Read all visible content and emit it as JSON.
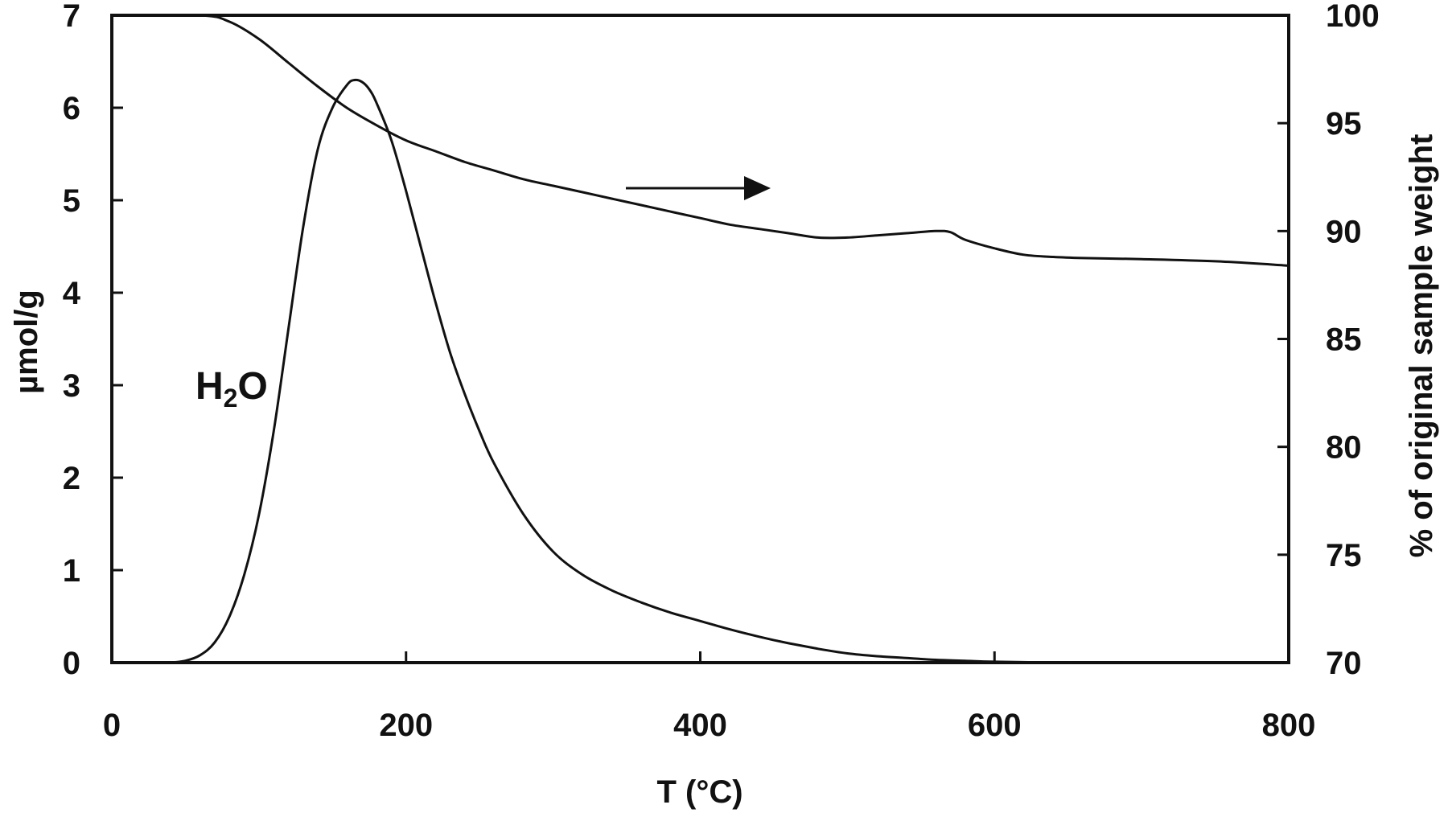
{
  "chart_data": {
    "type": "line",
    "title": "",
    "xlabel": "T (°C)",
    "ylabel": "µmol/g",
    "y2label": "% of original sample weight",
    "xlim": [
      0,
      800
    ],
    "ylim": [
      0,
      7
    ],
    "y2lim": [
      70,
      100
    ],
    "xticks": [
      "0",
      "200",
      "400",
      "600",
      "800"
    ],
    "yticks": [
      "0",
      "1",
      "2",
      "3",
      "4",
      "5",
      "6",
      "7"
    ],
    "y2ticks": [
      "70",
      "75",
      "80",
      "85",
      "90",
      "95",
      "100"
    ],
    "grid": false,
    "legend": "none",
    "annotations": {
      "h2o_main": "H",
      "h2o_sub": "2",
      "h2o_tail": "O"
    },
    "series": [
      {
        "axis": "left",
        "x": [
          40,
          50,
          60,
          70,
          80,
          90,
          100,
          110,
          120,
          130,
          140,
          150,
          160,
          165,
          170,
          175,
          180,
          190,
          200,
          210,
          220,
          230,
          240,
          250,
          260,
          280,
          300,
          320,
          340,
          360,
          380,
          400,
          420,
          440,
          460,
          480,
          500,
          520,
          540,
          560,
          580,
          600,
          650,
          700,
          750,
          800
        ],
        "y": [
          0.0,
          0.02,
          0.08,
          0.22,
          0.5,
          0.95,
          1.6,
          2.5,
          3.6,
          4.7,
          5.55,
          6.0,
          6.25,
          6.3,
          6.28,
          6.2,
          6.05,
          5.65,
          5.1,
          4.5,
          3.9,
          3.35,
          2.9,
          2.5,
          2.15,
          1.6,
          1.2,
          0.95,
          0.78,
          0.65,
          0.54,
          0.45,
          0.36,
          0.28,
          0.21,
          0.15,
          0.1,
          0.07,
          0.05,
          0.03,
          0.02,
          0.01,
          0.0,
          0.0,
          0.0,
          0.0
        ]
      },
      {
        "axis": "right",
        "x": [
          0,
          60,
          80,
          100,
          120,
          140,
          160,
          180,
          200,
          220,
          240,
          260,
          280,
          300,
          320,
          340,
          360,
          380,
          400,
          420,
          440,
          460,
          480,
          500,
          520,
          540,
          560,
          570,
          580,
          600,
          620,
          640,
          660,
          700,
          750,
          800
        ],
        "y": [
          100,
          100,
          99.7,
          98.9,
          97.8,
          96.7,
          95.7,
          94.9,
          94.2,
          93.7,
          93.2,
          92.8,
          92.4,
          92.1,
          91.8,
          91.5,
          91.2,
          90.9,
          90.6,
          90.3,
          90.1,
          89.9,
          89.7,
          89.7,
          89.8,
          89.9,
          90.0,
          89.95,
          89.6,
          89.2,
          88.9,
          88.8,
          88.75,
          88.7,
          88.6,
          88.4
        ]
      }
    ]
  }
}
